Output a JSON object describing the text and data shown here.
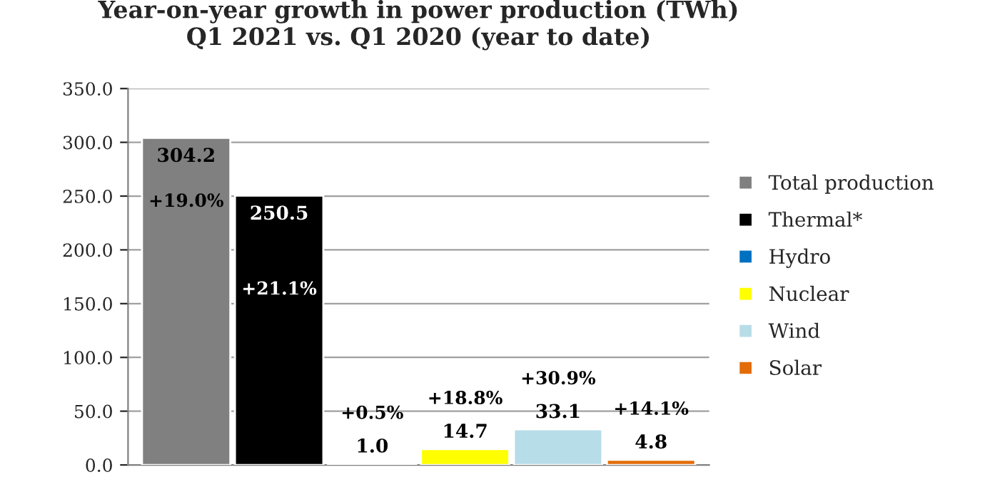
{
  "chart_data": {
    "type": "bar",
    "title": "Year-on-year growth in power production (TWh)\nQ1 2021 vs. Q1 2020 (year to date)",
    "categories": [
      null
    ],
    "series": [
      {
        "name": "Total production",
        "color": "#808080",
        "values": [
          304.2
        ],
        "value_labels": [
          "304.2"
        ]
      },
      {
        "name": "Thermal*",
        "color": "#000000",
        "values": [
          250.5
        ],
        "value_labels": [
          "250.5"
        ]
      },
      {
        "name": "Hydro",
        "color": "#0070c0",
        "values": [
          1.0
        ],
        "value_labels": [
          "1.0"
        ]
      },
      {
        "name": "Nuclear",
        "color": "#ffff00",
        "values": [
          14.7
        ],
        "value_labels": [
          "14.7"
        ]
      },
      {
        "name": "Wind",
        "color": "#b7dde8",
        "values": [
          33.1
        ],
        "value_labels": [
          "33.1"
        ]
      },
      {
        "name": "Solar",
        "color": "#e36c09",
        "values": [
          4.8
        ],
        "value_labels": [
          "4.8"
        ]
      }
    ],
    "annotations": [
      "+19.0%",
      "+21.1%",
      "+0.5%",
      "+18.8%",
      "+30.9%",
      "+14.1%"
    ],
    "ylim": [
      0,
      350
    ],
    "yticks": [
      {
        "value": 0,
        "label": "0.0"
      },
      {
        "value": 50,
        "label": "50.0"
      },
      {
        "value": 100,
        "label": "100.0"
      },
      {
        "value": 150,
        "label": "150.0"
      },
      {
        "value": 200,
        "label": "200.0"
      },
      {
        "value": 250,
        "label": "250.0"
      },
      {
        "value": 300,
        "label": "300.0"
      },
      {
        "value": 350,
        "label": "350.0"
      }
    ],
    "grid": "y",
    "legend": "right"
  }
}
